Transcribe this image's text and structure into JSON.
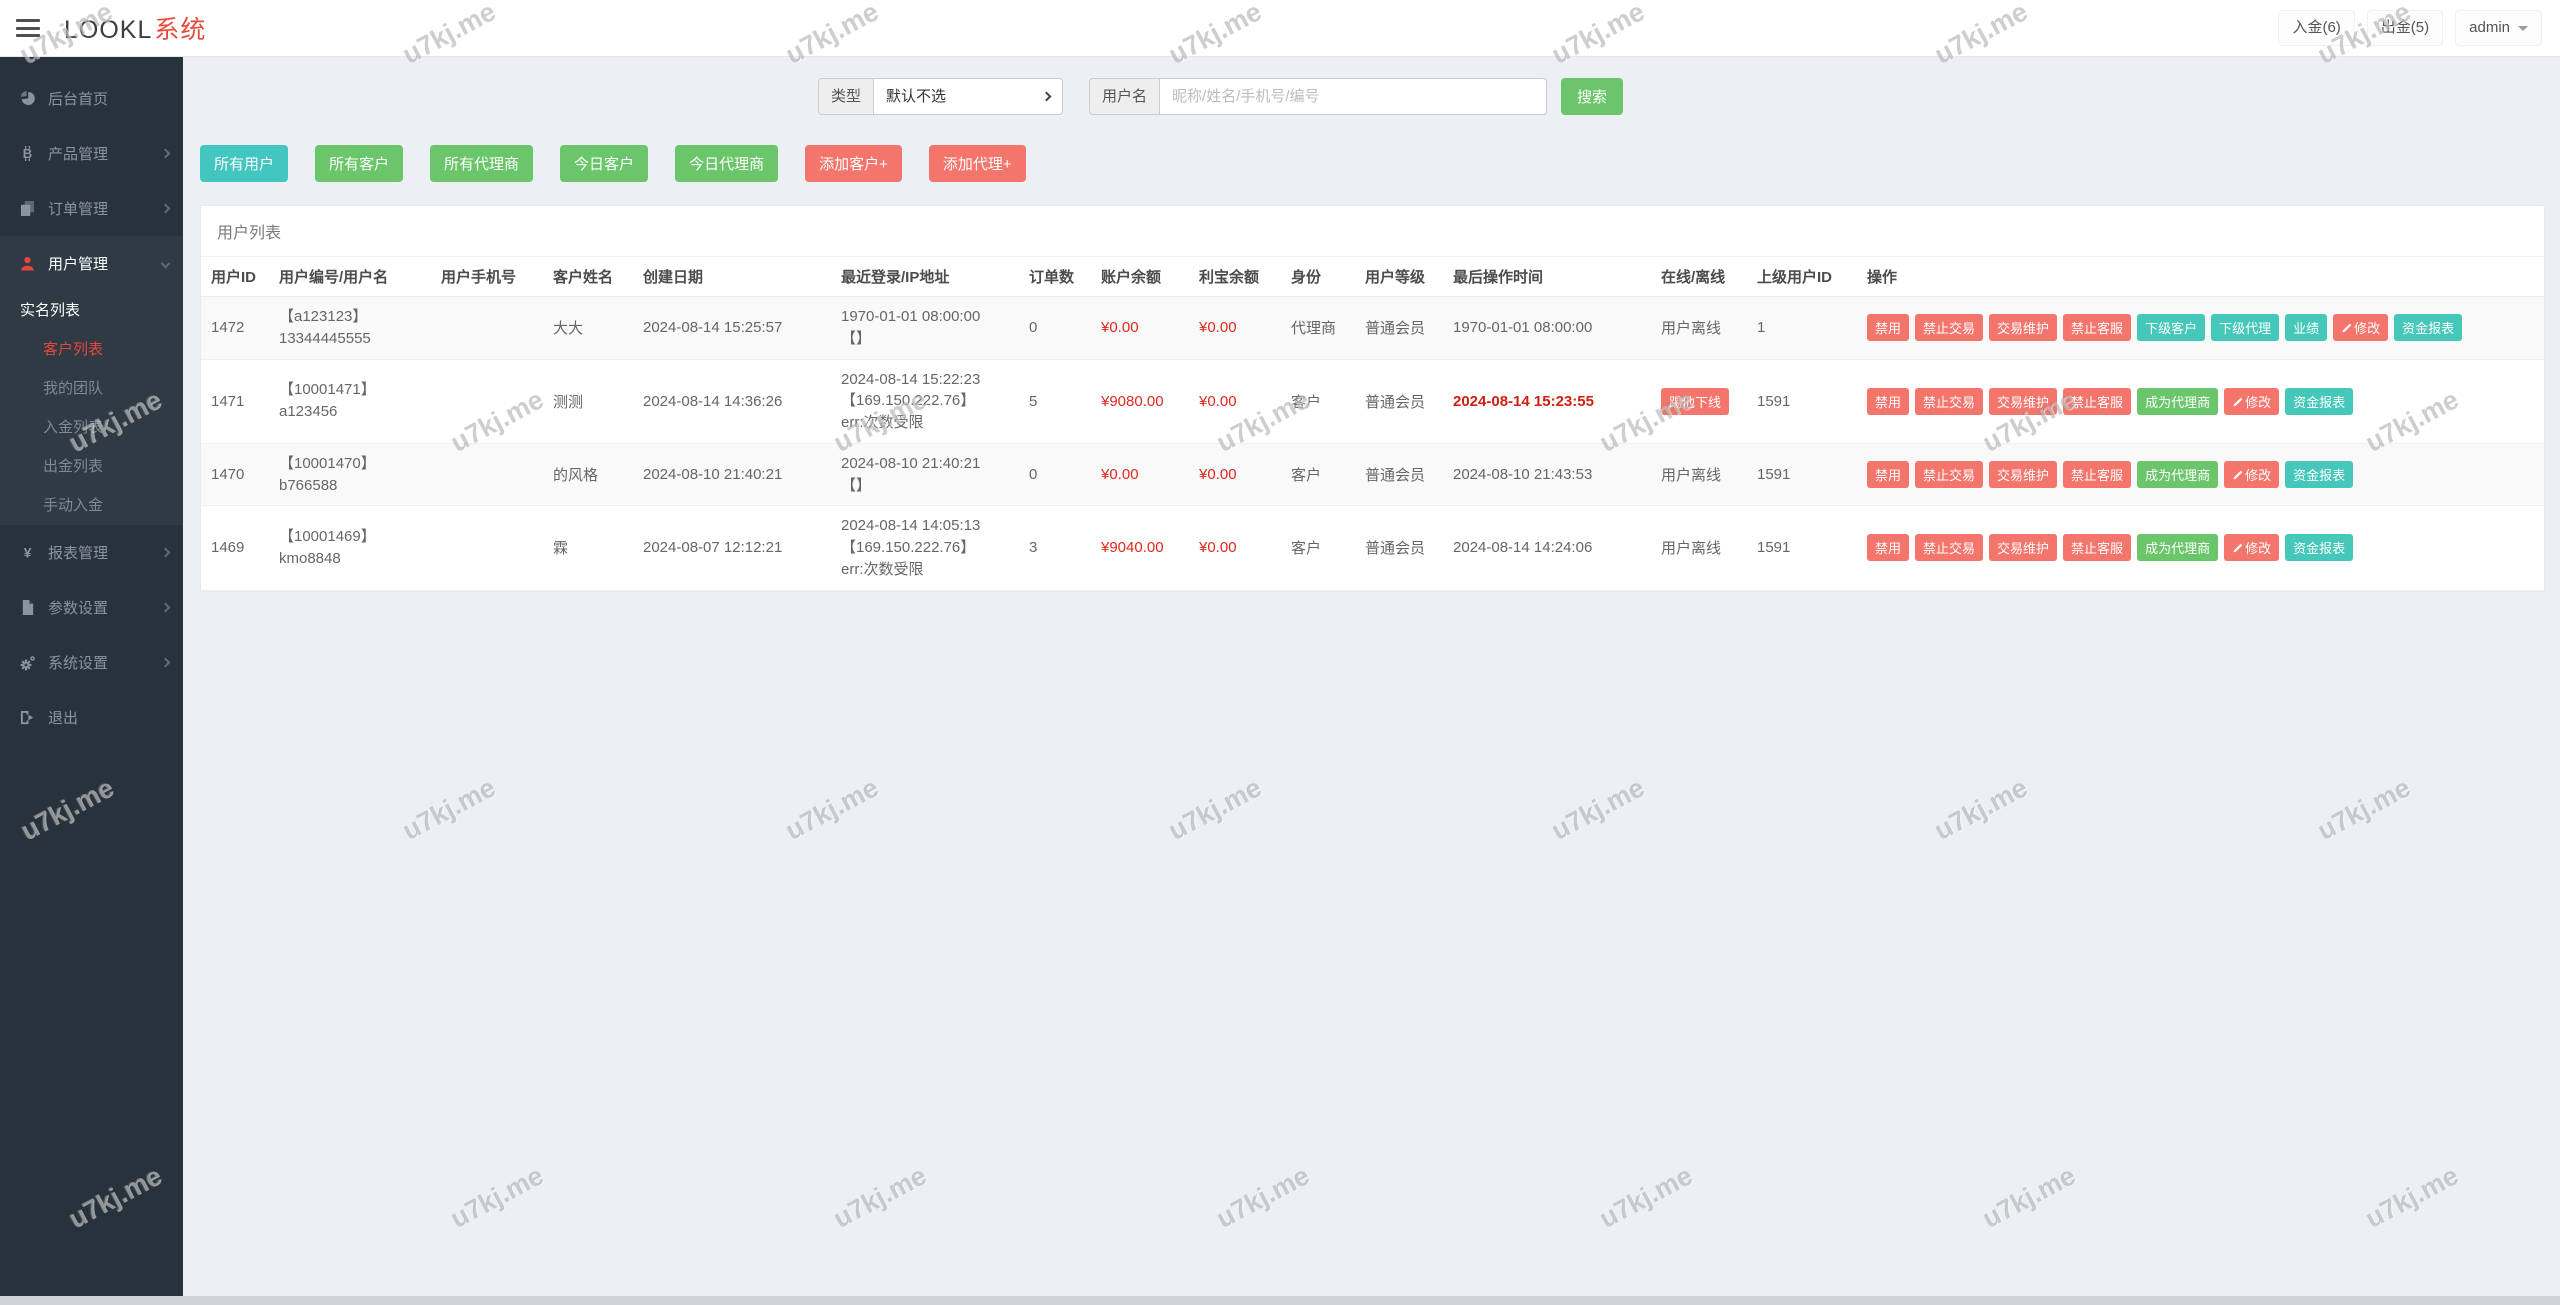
{
  "watermark": {
    "text": "u7kj.me"
  },
  "colors": {
    "accent_red": "#f4756c",
    "accent_green": "#6bc66b",
    "accent_teal": "#45c8b9",
    "money_red": "#e0281c",
    "sidebar_bg": "#28323c",
    "brand_red": "#e64b3c"
  },
  "navbar": {
    "brand": {
      "name": "LOOKL",
      "suffix": "系统"
    },
    "deposit": "入金(6)",
    "withdraw": "出金(5)",
    "user": "admin"
  },
  "sidebar": {
    "sections": [
      {
        "type": "item",
        "label": "后台首页",
        "icon": "dashboard-icon",
        "chevron": false
      },
      {
        "type": "item",
        "label": "产品管理",
        "icon": "bitcoin-icon",
        "chevron": true
      },
      {
        "type": "item",
        "label": "订单管理",
        "icon": "orders-icon",
        "chevron": true
      },
      {
        "type": "group",
        "label": "用户管理",
        "icon": "user-icon",
        "chevron": true,
        "active": true,
        "children": [
          {
            "label": "实名列表",
            "level": 1,
            "active": false
          },
          {
            "label": "客户列表",
            "level": 2,
            "active": true
          },
          {
            "label": "我的团队",
            "level": 2,
            "active": false
          },
          {
            "label": "入金列表",
            "level": 2,
            "active": false
          },
          {
            "label": "出金列表",
            "level": 2,
            "active": false
          },
          {
            "label": "手动入金",
            "level": 2,
            "active": false
          }
        ]
      },
      {
        "type": "item",
        "label": "报表管理",
        "icon": "yen-icon",
        "chevron": true
      },
      {
        "type": "item",
        "label": "参数设置",
        "icon": "document-icon",
        "chevron": true
      },
      {
        "type": "item",
        "label": "系统设置",
        "icon": "gear-icon",
        "chevron": true
      },
      {
        "type": "item",
        "label": "退出",
        "icon": "logout-icon",
        "chevron": false
      }
    ]
  },
  "filters": {
    "type_label": "类型",
    "type_value": "默认不选",
    "username_label": "用户名",
    "username_placeholder": "昵称/姓名/手机号/编号",
    "search_label": "搜索"
  },
  "toolbar": [
    {
      "label": "所有用户",
      "style": "teal"
    },
    {
      "label": "所有客户",
      "style": "green"
    },
    {
      "label": "所有代理商",
      "style": "green"
    },
    {
      "label": "今日客户",
      "style": "green"
    },
    {
      "label": "今日代理商",
      "style": "green"
    },
    {
      "label": "添加客户+",
      "style": "red"
    },
    {
      "label": "添加代理+",
      "style": "red"
    }
  ],
  "table": {
    "title": "用户列表",
    "columns": [
      "用户ID",
      "用户编号/用户名",
      "用户手机号",
      "客户姓名",
      "创建日期",
      "最近登录/IP地址",
      "订单数",
      "账户余额",
      "利宝余额",
      "身份",
      "用户等级",
      "最后操作时间",
      "在线/离线",
      "上级用户ID",
      "操作"
    ],
    "rows": [
      {
        "id": "1472",
        "user_no_lines": [
          "【a123123】",
          "13344445555"
        ],
        "phone": "",
        "customer_name": "大大",
        "created": "2024-08-14 15:25:57",
        "login_lines": [
          "1970-01-01 08:00:00",
          "【】"
        ],
        "orders": "0",
        "balance": "¥0.00",
        "libao_balance": "¥0.00",
        "role": "代理商",
        "level": "普通会员",
        "last_op": "1970-01-01 08:00:00",
        "last_op_alert": false,
        "online": {
          "type": "text",
          "label": "用户离线"
        },
        "parent_id": "1",
        "buttons": [
          {
            "label": "禁用",
            "style": "red"
          },
          {
            "label": "禁止交易",
            "style": "red"
          },
          {
            "label": "交易维护",
            "style": "red"
          },
          {
            "label": "禁止客服",
            "style": "red"
          },
          {
            "label": "下级客户",
            "style": "teal"
          },
          {
            "label": "下级代理",
            "style": "teal"
          },
          {
            "label": "业绩",
            "style": "teal"
          },
          {
            "label": "修改",
            "style": "red",
            "icon": "pencil"
          },
          {
            "label": "资金报表",
            "style": "teal"
          }
        ]
      },
      {
        "id": "1471",
        "user_no_lines": [
          "【10001471】",
          "a123456"
        ],
        "phone": "",
        "customer_name": "测测",
        "created": "2024-08-14 14:36:26",
        "login_lines": [
          "2024-08-14 15:22:23",
          "【169.150.222.76】",
          "err:次数受限"
        ],
        "orders": "5",
        "balance": "¥9080.00",
        "libao_balance": "¥0.00",
        "role": "客户",
        "level": "普通会员",
        "last_op": "2024-08-14 15:23:55",
        "last_op_alert": true,
        "online": {
          "type": "button",
          "label": "踢他下线"
        },
        "parent_id": "1591",
        "buttons": [
          {
            "label": "禁用",
            "style": "red"
          },
          {
            "label": "禁止交易",
            "style": "red"
          },
          {
            "label": "交易维护",
            "style": "red"
          },
          {
            "label": "禁止客服",
            "style": "red"
          },
          {
            "label": "成为代理商",
            "style": "green"
          },
          {
            "label": "修改",
            "style": "red",
            "icon": "pencil"
          },
          {
            "label": "资金报表",
            "style": "teal"
          }
        ]
      },
      {
        "id": "1470",
        "user_no_lines": [
          "【10001470】",
          "b766588"
        ],
        "phone": "",
        "customer_name": "的风格",
        "created": "2024-08-10 21:40:21",
        "login_lines": [
          "2024-08-10 21:40:21",
          "【】"
        ],
        "orders": "0",
        "balance": "¥0.00",
        "libao_balance": "¥0.00",
        "role": "客户",
        "level": "普通会员",
        "last_op": "2024-08-10 21:43:53",
        "last_op_alert": false,
        "online": {
          "type": "text",
          "label": "用户离线"
        },
        "parent_id": "1591",
        "buttons": [
          {
            "label": "禁用",
            "style": "red"
          },
          {
            "label": "禁止交易",
            "style": "red"
          },
          {
            "label": "交易维护",
            "style": "red"
          },
          {
            "label": "禁止客服",
            "style": "red"
          },
          {
            "label": "成为代理商",
            "style": "green"
          },
          {
            "label": "修改",
            "style": "red",
            "icon": "pencil"
          },
          {
            "label": "资金报表",
            "style": "teal"
          }
        ]
      },
      {
        "id": "1469",
        "user_no_lines": [
          "【10001469】",
          "kmo8848"
        ],
        "phone": "",
        "customer_name": "霖",
        "created": "2024-08-07 12:12:21",
        "login_lines": [
          "2024-08-14 14:05:13",
          "【169.150.222.76】",
          "err:次数受限"
        ],
        "orders": "3",
        "balance": "¥9040.00",
        "libao_balance": "¥0.00",
        "role": "客户",
        "level": "普通会员",
        "last_op": "2024-08-14 14:24:06",
        "last_op_alert": false,
        "online": {
          "type": "text",
          "label": "用户离线"
        },
        "parent_id": "1591",
        "buttons": [
          {
            "label": "禁用",
            "style": "red"
          },
          {
            "label": "禁止交易",
            "style": "red"
          },
          {
            "label": "交易维护",
            "style": "red"
          },
          {
            "label": "禁止客服",
            "style": "red"
          },
          {
            "label": "成为代理商",
            "style": "green"
          },
          {
            "label": "修改",
            "style": "red",
            "icon": "pencil"
          },
          {
            "label": "资金报表",
            "style": "teal"
          }
        ]
      }
    ]
  }
}
